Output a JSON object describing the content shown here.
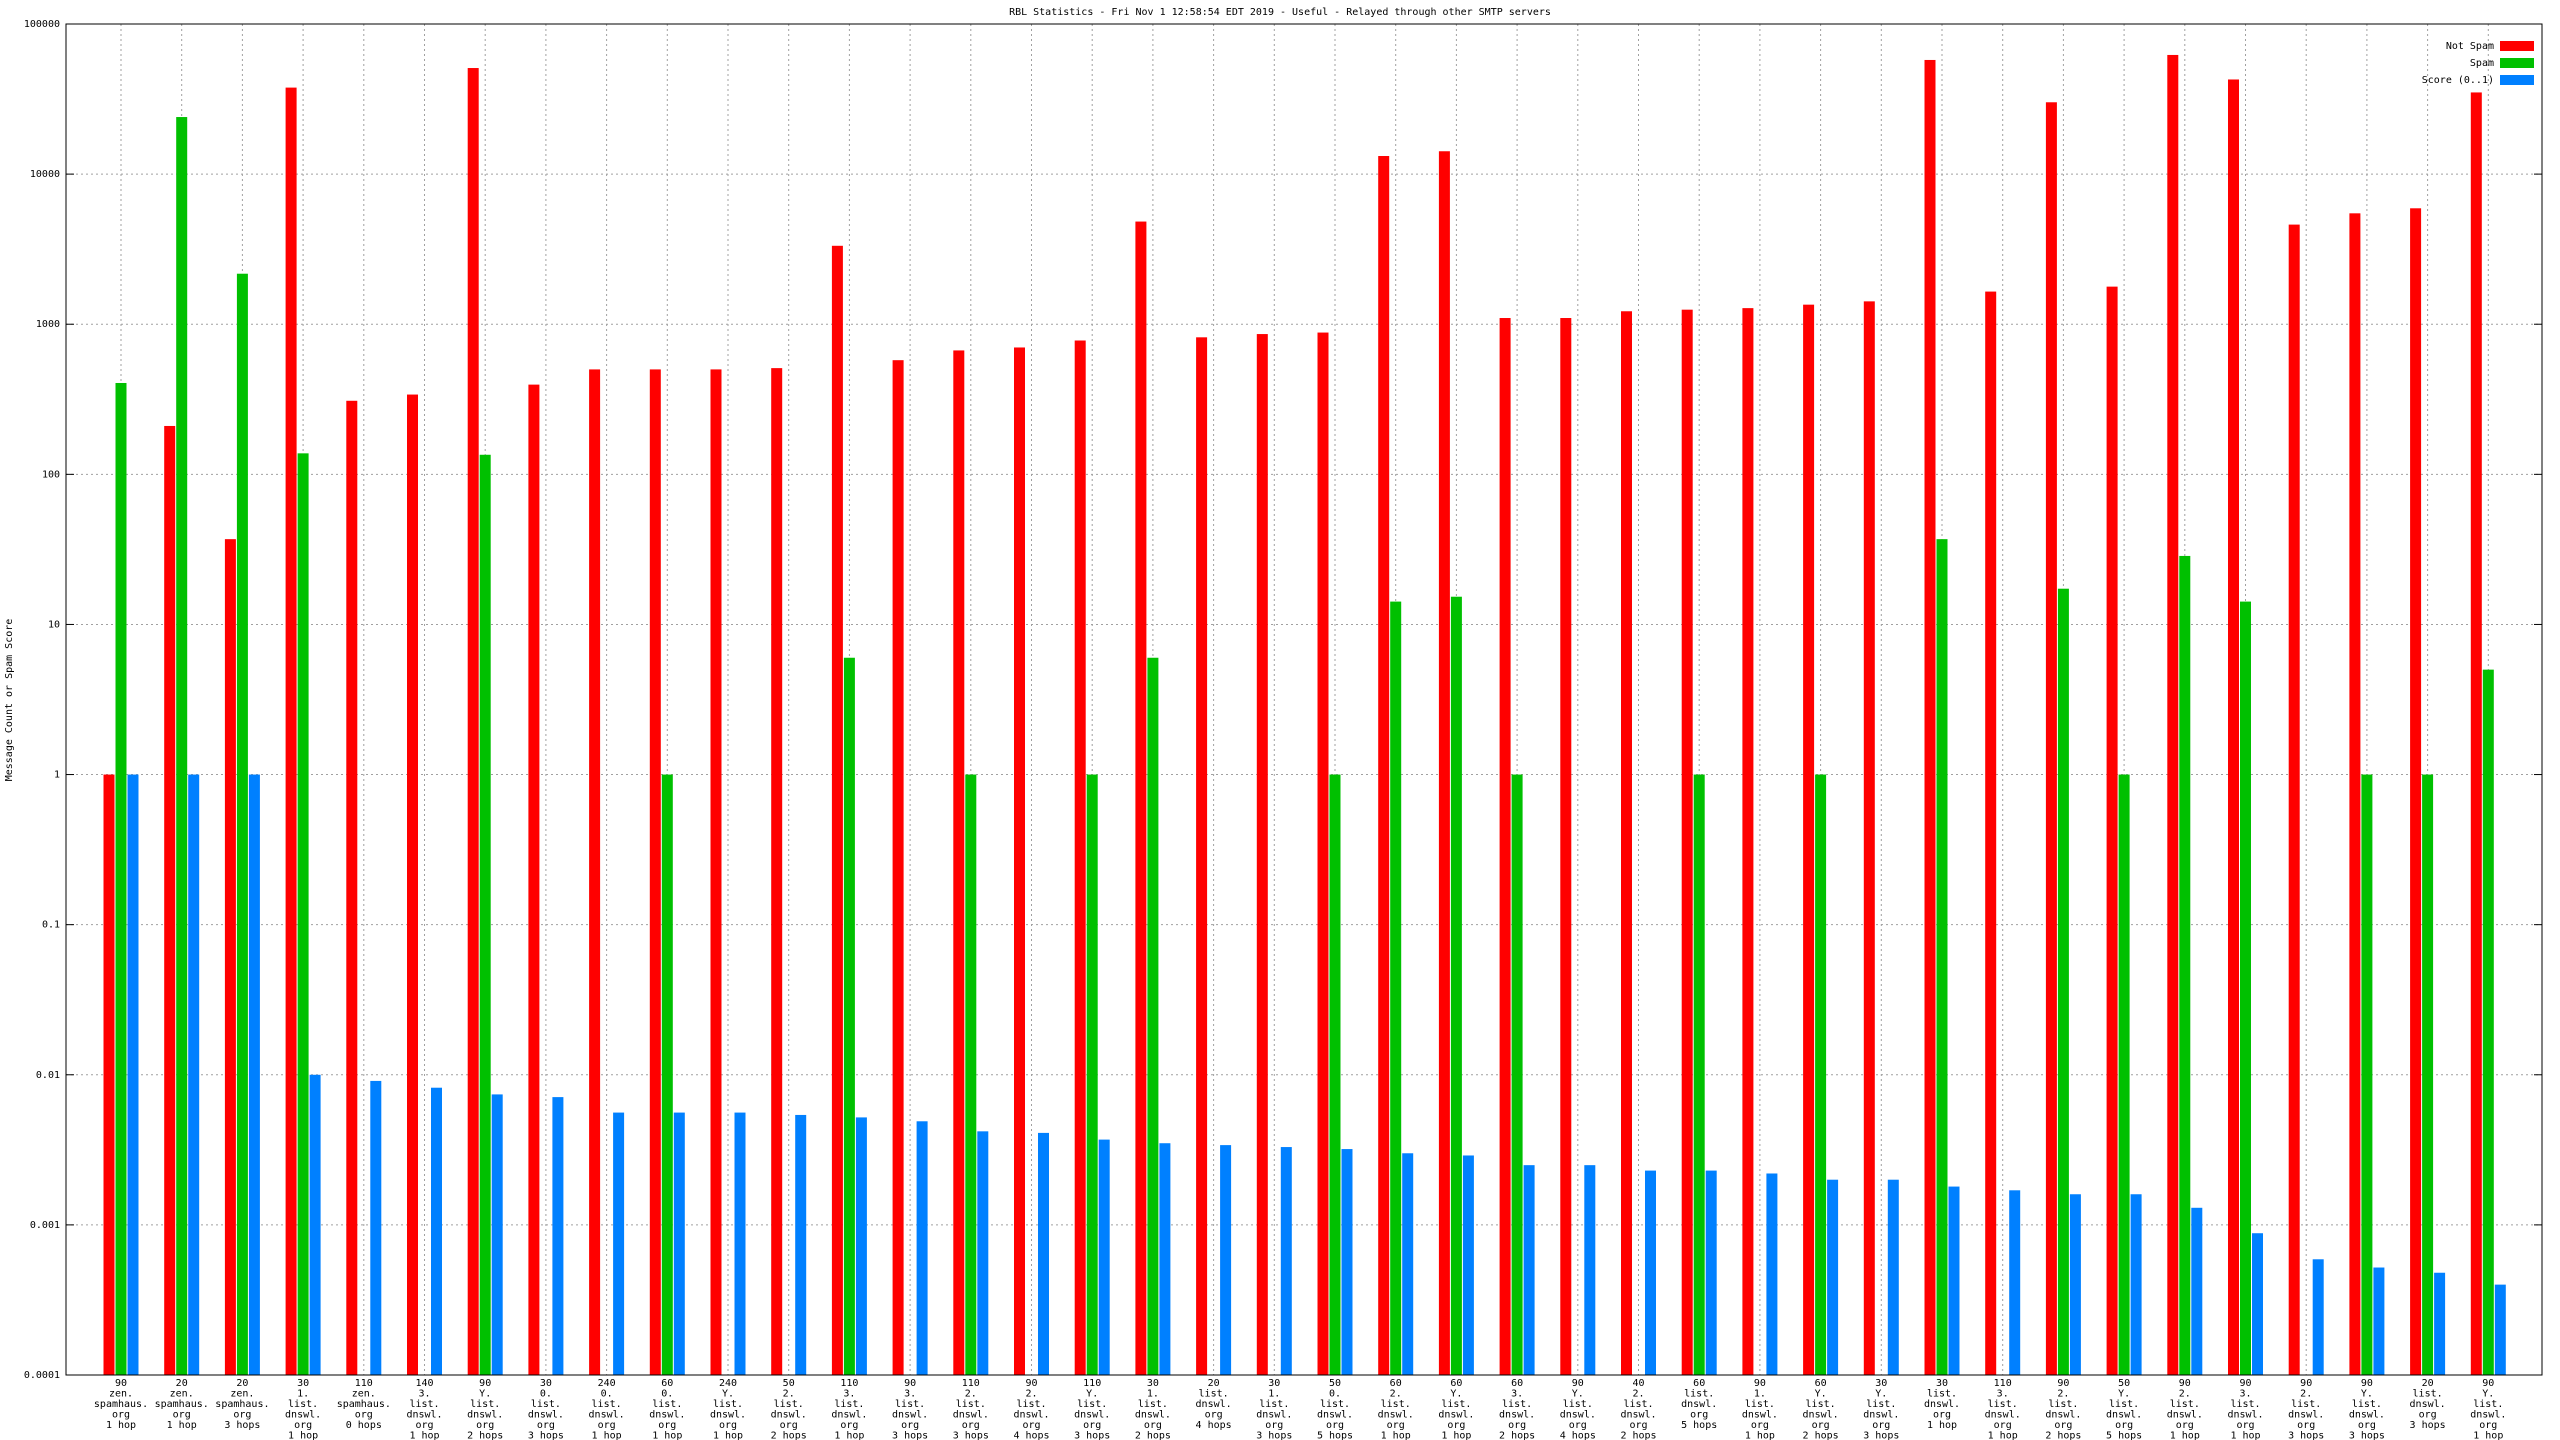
{
  "chart_data": {
    "type": "bar",
    "log_scale": true,
    "grid": true,
    "legend": "top-right",
    "title": "RBL Statistics - Fri Nov  1 12:58:54 EDT 2019 - Useful - Relayed through other SMTP servers",
    "y_label": "Message Count or Spam Score",
    "ylim": [
      0.0001,
      100000
    ],
    "yticks": [
      0.0001,
      0.001,
      0.01,
      0.1,
      1,
      10,
      100,
      1000,
      10000,
      100000
    ],
    "categories": [
      [
        "90",
        "zen.",
        "spamhaus.",
        "org",
        "1 hop"
      ],
      [
        "20",
        "zen.",
        "spamhaus.",
        "org",
        "1 hop"
      ],
      [
        "20",
        "zen.",
        "spamhaus.",
        "org",
        "3 hops"
      ],
      [
        "30",
        "1.",
        "list.",
        "dnswl.",
        "org",
        "1 hop"
      ],
      [
        "110",
        "zen.",
        "spamhaus.",
        "org",
        "0 hops"
      ],
      [
        "140",
        "3.",
        "list.",
        "dnswl.",
        "org",
        "1 hop"
      ],
      [
        "90",
        "Y.",
        "list.",
        "dnswl.",
        "org",
        "2 hops"
      ],
      [
        "30",
        "0.",
        "list.",
        "dnswl.",
        "org",
        "3 hops"
      ],
      [
        "240",
        "0.",
        "list.",
        "dnswl.",
        "org",
        "1 hop"
      ],
      [
        "60",
        "0.",
        "list.",
        "dnswl.",
        "org",
        "1 hop"
      ],
      [
        "240",
        "Y.",
        "list.",
        "dnswl.",
        "org",
        "1 hop"
      ],
      [
        "50",
        "2.",
        "list.",
        "dnswl.",
        "org",
        "2 hops"
      ],
      [
        "110",
        "3.",
        "list.",
        "dnswl.",
        "org",
        "1 hop"
      ],
      [
        "90",
        "3.",
        "list.",
        "dnswl.",
        "org",
        "3 hops"
      ],
      [
        "110",
        "2.",
        "list.",
        "dnswl.",
        "org",
        "3 hops"
      ],
      [
        "90",
        "2.",
        "list.",
        "dnswl.",
        "org",
        "4 hops"
      ],
      [
        "110",
        "Y.",
        "list.",
        "dnswl.",
        "org",
        "3 hops"
      ],
      [
        "30",
        "1.",
        "list.",
        "dnswl.",
        "org",
        "2 hops"
      ],
      [
        "20",
        "list.",
        "dnswl.",
        "org",
        "4 hops"
      ],
      [
        "30",
        "1.",
        "list.",
        "dnswl.",
        "org",
        "3 hops"
      ],
      [
        "50",
        "0.",
        "list.",
        "dnswl.",
        "org",
        "5 hops"
      ],
      [
        "60",
        "2.",
        "list.",
        "dnswl.",
        "org",
        "1 hop"
      ],
      [
        "60",
        "Y.",
        "list.",
        "dnswl.",
        "org",
        "1 hop"
      ],
      [
        "60",
        "3.",
        "list.",
        "dnswl.",
        "org",
        "2 hops"
      ],
      [
        "90",
        "Y.",
        "list.",
        "dnswl.",
        "org",
        "4 hops"
      ],
      [
        "40",
        "2.",
        "list.",
        "dnswl.",
        "org",
        "2 hops"
      ],
      [
        "60",
        "list.",
        "dnswl.",
        "org",
        "5 hops"
      ],
      [
        "90",
        "1.",
        "list.",
        "dnswl.",
        "org",
        "1 hop"
      ],
      [
        "60",
        "Y.",
        "list.",
        "dnswl.",
        "org",
        "2 hops"
      ],
      [
        "30",
        "Y.",
        "list.",
        "dnswl.",
        "org",
        "3 hops"
      ],
      [
        "30",
        "list.",
        "dnswl.",
        "org",
        "1 hop"
      ],
      [
        "110",
        "3.",
        "list.",
        "dnswl.",
        "org",
        "1 hop"
      ],
      [
        "90",
        "2.",
        "list.",
        "dnswl.",
        "org",
        "2 hops"
      ],
      [
        "50",
        "Y.",
        "list.",
        "dnswl.",
        "org",
        "5 hops"
      ],
      [
        "90",
        "2.",
        "list.",
        "dnswl.",
        "org",
        "1 hop"
      ],
      [
        "90",
        "3.",
        "list.",
        "dnswl.",
        "org",
        "1 hop"
      ],
      [
        "90",
        "2.",
        "list.",
        "dnswl.",
        "org",
        "3 hops"
      ],
      [
        "90",
        "Y.",
        "list.",
        "dnswl.",
        "org",
        "3 hops"
      ],
      [
        "20",
        "list.",
        "dnswl.",
        "org",
        "3 hops"
      ],
      [
        "90",
        "Y.",
        "list.",
        "dnswl.",
        "org",
        "1 hop"
      ]
    ],
    "series": [
      {
        "name": "Not Spam",
        "color": "#ff0000",
        "values": [
          1,
          210,
          37,
          37700,
          309,
          340,
          50900,
          396,
          500,
          500,
          500,
          510,
          3330,
          576,
          669,
          700,
          779,
          4830,
          818,
          860,
          880,
          13200,
          14200,
          1100,
          1100,
          1220,
          1250,
          1280,
          1350,
          1420,
          57600,
          1650,
          30100,
          1780,
          62200,
          42700,
          4610,
          5480,
          5920,
          35000
        ]
      },
      {
        "name": "Spam",
        "color": "#00c000",
        "values": [
          406,
          24000,
          2170,
          138,
          null,
          null,
          135,
          null,
          null,
          1,
          null,
          null,
          6,
          null,
          1,
          null,
          1,
          6,
          null,
          null,
          1,
          14.2,
          15.3,
          1,
          null,
          null,
          1,
          null,
          1,
          null,
          37,
          null,
          17.3,
          1,
          28.6,
          14.2,
          null,
          1,
          1,
          5
        ]
      },
      {
        "name": "Score (0..1)",
        "color": "#0080ff",
        "values": [
          1,
          1,
          1,
          0.01,
          0.0091,
          0.0082,
          0.0074,
          0.0071,
          0.0056,
          0.0056,
          0.0056,
          0.0054,
          0.0052,
          0.0049,
          0.0042,
          0.0041,
          0.0037,
          0.0035,
          0.0034,
          0.0033,
          0.0032,
          0.003,
          0.0029,
          0.0025,
          0.0025,
          0.0023,
          0.0023,
          0.0022,
          0.002,
          0.002,
          0.0018,
          0.0017,
          0.0016,
          0.0016,
          0.0013,
          0.00088,
          0.00059,
          0.00052,
          0.00048,
          0.0004
        ]
      }
    ]
  }
}
